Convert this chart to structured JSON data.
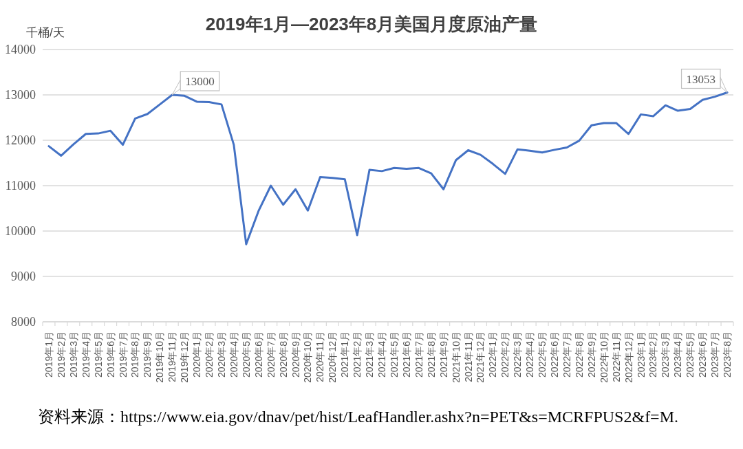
{
  "chart_data": {
    "type": "line",
    "title": "2019年1月—2023年8月美国月度原油产量",
    "ylabel": "千桶/天",
    "categories": [
      "2019年1月",
      "2019年2月",
      "2019年3月",
      "2019年4月",
      "2019年5月",
      "2019年6月",
      "2019年7月",
      "2019年8月",
      "2019年9月",
      "2019年10月",
      "2019年11月",
      "2019年12月",
      "2020年1月",
      "2020年2月",
      "2020年3月",
      "2020年4月",
      "2020年5月",
      "2020年6月",
      "2020年7月",
      "2020年8月",
      "2020年9月",
      "2020年10月",
      "2020年11月",
      "2020年12月",
      "2021年1月",
      "2021年2月",
      "2021年3月",
      "2021年4月",
      "2021年5月",
      "2021年6月",
      "2021年7月",
      "2021年8月",
      "2021年9月",
      "2021年10月",
      "2021年11月",
      "2021年12月",
      "2022年1月",
      "2022年2月",
      "2022年3月",
      "2022年4月",
      "2022年5月",
      "2022年6月",
      "2022年7月",
      "2022年8月",
      "2022年9月",
      "2022年10月",
      "2022年11月",
      "2022年12月",
      "2023年1月",
      "2023年2月",
      "2023年3月",
      "2023年4月",
      "2023年5月",
      "2023年6月",
      "2023年7月",
      "2023年8月"
    ],
    "values": [
      11870,
      11660,
      11910,
      12140,
      12150,
      12210,
      11900,
      12480,
      12580,
      12790,
      13000,
      12980,
      12850,
      12840,
      12790,
      11900,
      9710,
      10440,
      11000,
      10580,
      10920,
      10450,
      11190,
      11170,
      11140,
      9910,
      11350,
      11320,
      11390,
      11370,
      11390,
      11270,
      10920,
      11560,
      11780,
      11680,
      11480,
      11260,
      11800,
      11770,
      11730,
      11790,
      11840,
      11990,
      12330,
      12380,
      12380,
      12140,
      12570,
      12530,
      12770,
      12650,
      12690,
      12890,
      12960,
      13053
    ],
    "value_labels": [
      null,
      null,
      null,
      null,
      null,
      null,
      null,
      null,
      null,
      null,
      "13000",
      null,
      null,
      null,
      null,
      null,
      null,
      null,
      null,
      null,
      null,
      null,
      null,
      null,
      null,
      null,
      null,
      null,
      null,
      null,
      null,
      null,
      null,
      null,
      null,
      null,
      null,
      null,
      null,
      null,
      null,
      null,
      null,
      null,
      null,
      null,
      null,
      null,
      null,
      null,
      null,
      null,
      null,
      null,
      null,
      "13053"
    ],
    "color": "#4472c4",
    "ylim": [
      8000,
      14000
    ],
    "yticks": [
      8000,
      9000,
      10000,
      11000,
      12000,
      13000,
      14000
    ],
    "grid": "y",
    "annotations": [
      "资料来源：https://www.eia.gov/dnav/pet/hist/LeafHandler.ashx?n=PET&s=MCRFPUS2&f=M."
    ]
  }
}
